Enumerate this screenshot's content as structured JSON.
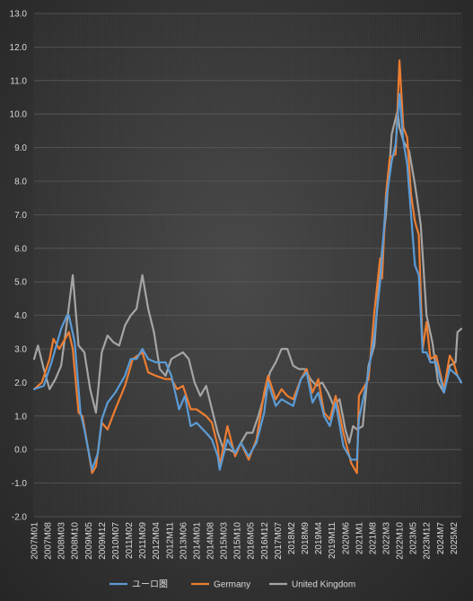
{
  "chart_data": {
    "type": "line",
    "title": "",
    "xlabel": "",
    "ylabel": "",
    "ylim": [
      -2.0,
      13.0
    ],
    "y_step": 1.0,
    "grid": "horizontal and vertical",
    "legend": "bottom",
    "x_tick_labels": [
      "2007M01",
      "2007M08",
      "2008M03",
      "2008M10",
      "2009M05",
      "2009M12",
      "2010M07",
      "2011M02",
      "2011M09",
      "2012M04",
      "2012M11",
      "2013M06",
      "2014M01",
      "2014M08",
      "2015M03",
      "2015M10",
      "2016M05",
      "2016M12",
      "2017M07",
      "2018M2",
      "2018M9",
      "2019M4",
      "2019M11",
      "2020M6",
      "2021M1",
      "2021M8",
      "2022M3",
      "2022M10",
      "2023M5",
      "2023M12",
      "2024M7",
      "2025M2"
    ],
    "x_start": "2007-01",
    "x_end": "2025-06",
    "series": [
      {
        "name": "ユーロ圏",
        "color": "#5b9bd5",
        "points": [
          [
            "2007-01",
            1.8
          ],
          [
            "2007-06",
            1.9
          ],
          [
            "2007-10",
            2.6
          ],
          [
            "2008-03",
            3.6
          ],
          [
            "2008-06",
            4.0
          ],
          [
            "2008-07",
            4.0
          ],
          [
            "2008-10",
            3.2
          ],
          [
            "2009-01",
            1.1
          ],
          [
            "2009-03",
            0.6
          ],
          [
            "2009-05",
            0.0
          ],
          [
            "2009-07",
            -0.6
          ],
          [
            "2009-10",
            -0.1
          ],
          [
            "2009-12",
            0.9
          ],
          [
            "2010-03",
            1.4
          ],
          [
            "2010-07",
            1.7
          ],
          [
            "2010-12",
            2.2
          ],
          [
            "2011-03",
            2.7
          ],
          [
            "2011-06",
            2.7
          ],
          [
            "2011-09",
            3.0
          ],
          [
            "2011-12",
            2.7
          ],
          [
            "2012-04",
            2.6
          ],
          [
            "2012-09",
            2.6
          ],
          [
            "2012-12",
            2.2
          ],
          [
            "2013-04",
            1.2
          ],
          [
            "2013-07",
            1.6
          ],
          [
            "2013-10",
            0.7
          ],
          [
            "2014-01",
            0.8
          ],
          [
            "2014-06",
            0.5
          ],
          [
            "2014-09",
            0.3
          ],
          [
            "2014-12",
            -0.2
          ],
          [
            "2015-01",
            -0.6
          ],
          [
            "2015-05",
            0.3
          ],
          [
            "2015-09",
            -0.1
          ],
          [
            "2015-12",
            0.2
          ],
          [
            "2016-04",
            -0.2
          ],
          [
            "2016-08",
            0.2
          ],
          [
            "2016-12",
            1.1
          ],
          [
            "2017-02",
            2.0
          ],
          [
            "2017-06",
            1.3
          ],
          [
            "2017-09",
            1.5
          ],
          [
            "2017-12",
            1.4
          ],
          [
            "2018-03",
            1.3
          ],
          [
            "2018-07",
            2.1
          ],
          [
            "2018-10",
            2.3
          ],
          [
            "2019-01",
            1.4
          ],
          [
            "2019-04",
            1.7
          ],
          [
            "2019-07",
            1.0
          ],
          [
            "2019-10",
            0.7
          ],
          [
            "2020-01",
            1.4
          ],
          [
            "2020-05",
            0.1
          ],
          [
            "2020-09",
            -0.3
          ],
          [
            "2020-12",
            -0.3
          ],
          [
            "2021-01",
            0.9
          ],
          [
            "2021-05",
            2.0
          ],
          [
            "2021-09",
            3.4
          ],
          [
            "2021-12",
            5.0
          ],
          [
            "2022-03",
            7.4
          ],
          [
            "2022-06",
            8.6
          ],
          [
            "2022-08",
            9.1
          ],
          [
            "2022-10",
            10.6
          ],
          [
            "2022-12",
            9.2
          ],
          [
            "2023-02",
            8.5
          ],
          [
            "2023-04",
            7.0
          ],
          [
            "2023-06",
            5.5
          ],
          [
            "2023-08",
            5.2
          ],
          [
            "2023-10",
            2.9
          ],
          [
            "2023-12",
            2.9
          ],
          [
            "2024-02",
            2.6
          ],
          [
            "2024-05",
            2.6
          ],
          [
            "2024-09",
            1.7
          ],
          [
            "2024-12",
            2.4
          ],
          [
            "2025-02",
            2.3
          ],
          [
            "2025-04",
            2.2
          ],
          [
            "2025-06",
            2.0
          ]
        ]
      },
      {
        "name": "Germany",
        "color": "#ed7d31",
        "points": [
          [
            "2007-01",
            1.8
          ],
          [
            "2007-05",
            2.0
          ],
          [
            "2007-09",
            2.7
          ],
          [
            "2007-11",
            3.3
          ],
          [
            "2008-02",
            3.0
          ],
          [
            "2008-06",
            3.4
          ],
          [
            "2008-07",
            3.5
          ],
          [
            "2008-09",
            3.0
          ],
          [
            "2008-12",
            1.1
          ],
          [
            "2009-02",
            1.0
          ],
          [
            "2009-05",
            0.0
          ],
          [
            "2009-07",
            -0.7
          ],
          [
            "2009-09",
            -0.5
          ],
          [
            "2009-12",
            0.8
          ],
          [
            "2010-03",
            0.6
          ],
          [
            "2010-07",
            1.2
          ],
          [
            "2010-12",
            1.9
          ],
          [
            "2011-04",
            2.7
          ],
          [
            "2011-09",
            2.9
          ],
          [
            "2011-12",
            2.3
          ],
          [
            "2012-04",
            2.2
          ],
          [
            "2012-09",
            2.1
          ],
          [
            "2012-12",
            2.1
          ],
          [
            "2013-03",
            1.8
          ],
          [
            "2013-06",
            1.9
          ],
          [
            "2013-10",
            1.2
          ],
          [
            "2014-01",
            1.2
          ],
          [
            "2014-06",
            1.0
          ],
          [
            "2014-09",
            0.8
          ],
          [
            "2014-12",
            0.1
          ],
          [
            "2015-01",
            -0.5
          ],
          [
            "2015-05",
            0.7
          ],
          [
            "2015-09",
            -0.2
          ],
          [
            "2015-12",
            0.2
          ],
          [
            "2016-04",
            -0.3
          ],
          [
            "2016-08",
            0.3
          ],
          [
            "2016-12",
            1.7
          ],
          [
            "2017-02",
            2.2
          ],
          [
            "2017-06",
            1.5
          ],
          [
            "2017-09",
            1.8
          ],
          [
            "2017-12",
            1.6
          ],
          [
            "2018-03",
            1.5
          ],
          [
            "2018-07",
            2.1
          ],
          [
            "2018-10",
            2.4
          ],
          [
            "2019-01",
            1.7
          ],
          [
            "2019-04",
            2.1
          ],
          [
            "2019-07",
            1.1
          ],
          [
            "2019-10",
            0.9
          ],
          [
            "2020-01",
            1.6
          ],
          [
            "2020-05",
            0.5
          ],
          [
            "2020-09",
            -0.4
          ],
          [
            "2020-12",
            -0.7
          ],
          [
            "2021-01",
            1.6
          ],
          [
            "2021-06",
            2.1
          ],
          [
            "2021-09",
            4.1
          ],
          [
            "2021-12",
            5.7
          ],
          [
            "2022-01",
            5.1
          ],
          [
            "2022-03",
            7.6
          ],
          [
            "2022-05",
            8.7
          ],
          [
            "2022-08",
            8.8
          ],
          [
            "2022-10",
            11.6
          ],
          [
            "2022-12",
            9.6
          ],
          [
            "2023-02",
            9.3
          ],
          [
            "2023-04",
            7.6
          ],
          [
            "2023-06",
            6.8
          ],
          [
            "2023-08",
            6.4
          ],
          [
            "2023-10",
            3.0
          ],
          [
            "2023-12",
            3.8
          ],
          [
            "2024-02",
            2.7
          ],
          [
            "2024-05",
            2.8
          ],
          [
            "2024-09",
            1.8
          ],
          [
            "2024-12",
            2.8
          ],
          [
            "2025-02",
            2.6
          ],
          [
            "2025-04",
            2.2
          ],
          [
            "2025-06",
            2.0
          ]
        ]
      },
      {
        "name": "United Kingdom",
        "color": "#a5a5a5",
        "points": [
          [
            "2007-01",
            2.7
          ],
          [
            "2007-03",
            3.1
          ],
          [
            "2007-06",
            2.4
          ],
          [
            "2007-09",
            1.8
          ],
          [
            "2007-12",
            2.1
          ],
          [
            "2008-03",
            2.5
          ],
          [
            "2008-06",
            3.8
          ],
          [
            "2008-09",
            5.2
          ],
          [
            "2008-12",
            3.1
          ],
          [
            "2009-03",
            2.9
          ],
          [
            "2009-06",
            1.8
          ],
          [
            "2009-09",
            1.1
          ],
          [
            "2009-12",
            2.9
          ],
          [
            "2010-03",
            3.4
          ],
          [
            "2010-06",
            3.2
          ],
          [
            "2010-09",
            3.1
          ],
          [
            "2010-12",
            3.7
          ],
          [
            "2011-03",
            4.0
          ],
          [
            "2011-06",
            4.2
          ],
          [
            "2011-09",
            5.2
          ],
          [
            "2011-12",
            4.2
          ],
          [
            "2012-03",
            3.5
          ],
          [
            "2012-06",
            2.4
          ],
          [
            "2012-09",
            2.2
          ],
          [
            "2012-12",
            2.7
          ],
          [
            "2013-03",
            2.8
          ],
          [
            "2013-06",
            2.9
          ],
          [
            "2013-09",
            2.7
          ],
          [
            "2013-12",
            2.0
          ],
          [
            "2014-03",
            1.6
          ],
          [
            "2014-06",
            1.9
          ],
          [
            "2014-09",
            1.2
          ],
          [
            "2014-12",
            0.5
          ],
          [
            "2015-03",
            0.0
          ],
          [
            "2015-06",
            0.0
          ],
          [
            "2015-09",
            -0.1
          ],
          [
            "2015-12",
            0.2
          ],
          [
            "2016-03",
            0.5
          ],
          [
            "2016-06",
            0.5
          ],
          [
            "2016-09",
            1.0
          ],
          [
            "2016-12",
            1.6
          ],
          [
            "2017-03",
            2.3
          ],
          [
            "2017-06",
            2.6
          ],
          [
            "2017-09",
            3.0
          ],
          [
            "2017-12",
            3.0
          ],
          [
            "2018-03",
            2.5
          ],
          [
            "2018-06",
            2.4
          ],
          [
            "2018-09",
            2.4
          ],
          [
            "2018-12",
            2.1
          ],
          [
            "2019-03",
            1.9
          ],
          [
            "2019-06",
            2.0
          ],
          [
            "2019-09",
            1.7
          ],
          [
            "2019-12",
            1.3
          ],
          [
            "2020-03",
            1.5
          ],
          [
            "2020-06",
            0.6
          ],
          [
            "2020-08",
            0.2
          ],
          [
            "2020-10",
            0.7
          ],
          [
            "2020-12",
            0.6
          ],
          [
            "2021-03",
            0.7
          ],
          [
            "2021-06",
            2.5
          ],
          [
            "2021-09",
            3.1
          ],
          [
            "2021-12",
            5.4
          ],
          [
            "2022-03",
            7.0
          ],
          [
            "2022-06",
            9.4
          ],
          [
            "2022-09",
            10.1
          ],
          [
            "2022-10",
            9.6
          ],
          [
            "2022-12",
            9.2
          ],
          [
            "2023-03",
            8.9
          ],
          [
            "2023-06",
            7.9
          ],
          [
            "2023-09",
            6.7
          ],
          [
            "2023-12",
            4.0
          ],
          [
            "2024-03",
            3.2
          ],
          [
            "2024-06",
            2.0
          ],
          [
            "2024-09",
            1.7
          ],
          [
            "2024-12",
            2.5
          ],
          [
            "2025-03",
            2.6
          ],
          [
            "2025-04",
            3.5
          ],
          [
            "2025-06",
            3.6
          ]
        ]
      }
    ]
  }
}
